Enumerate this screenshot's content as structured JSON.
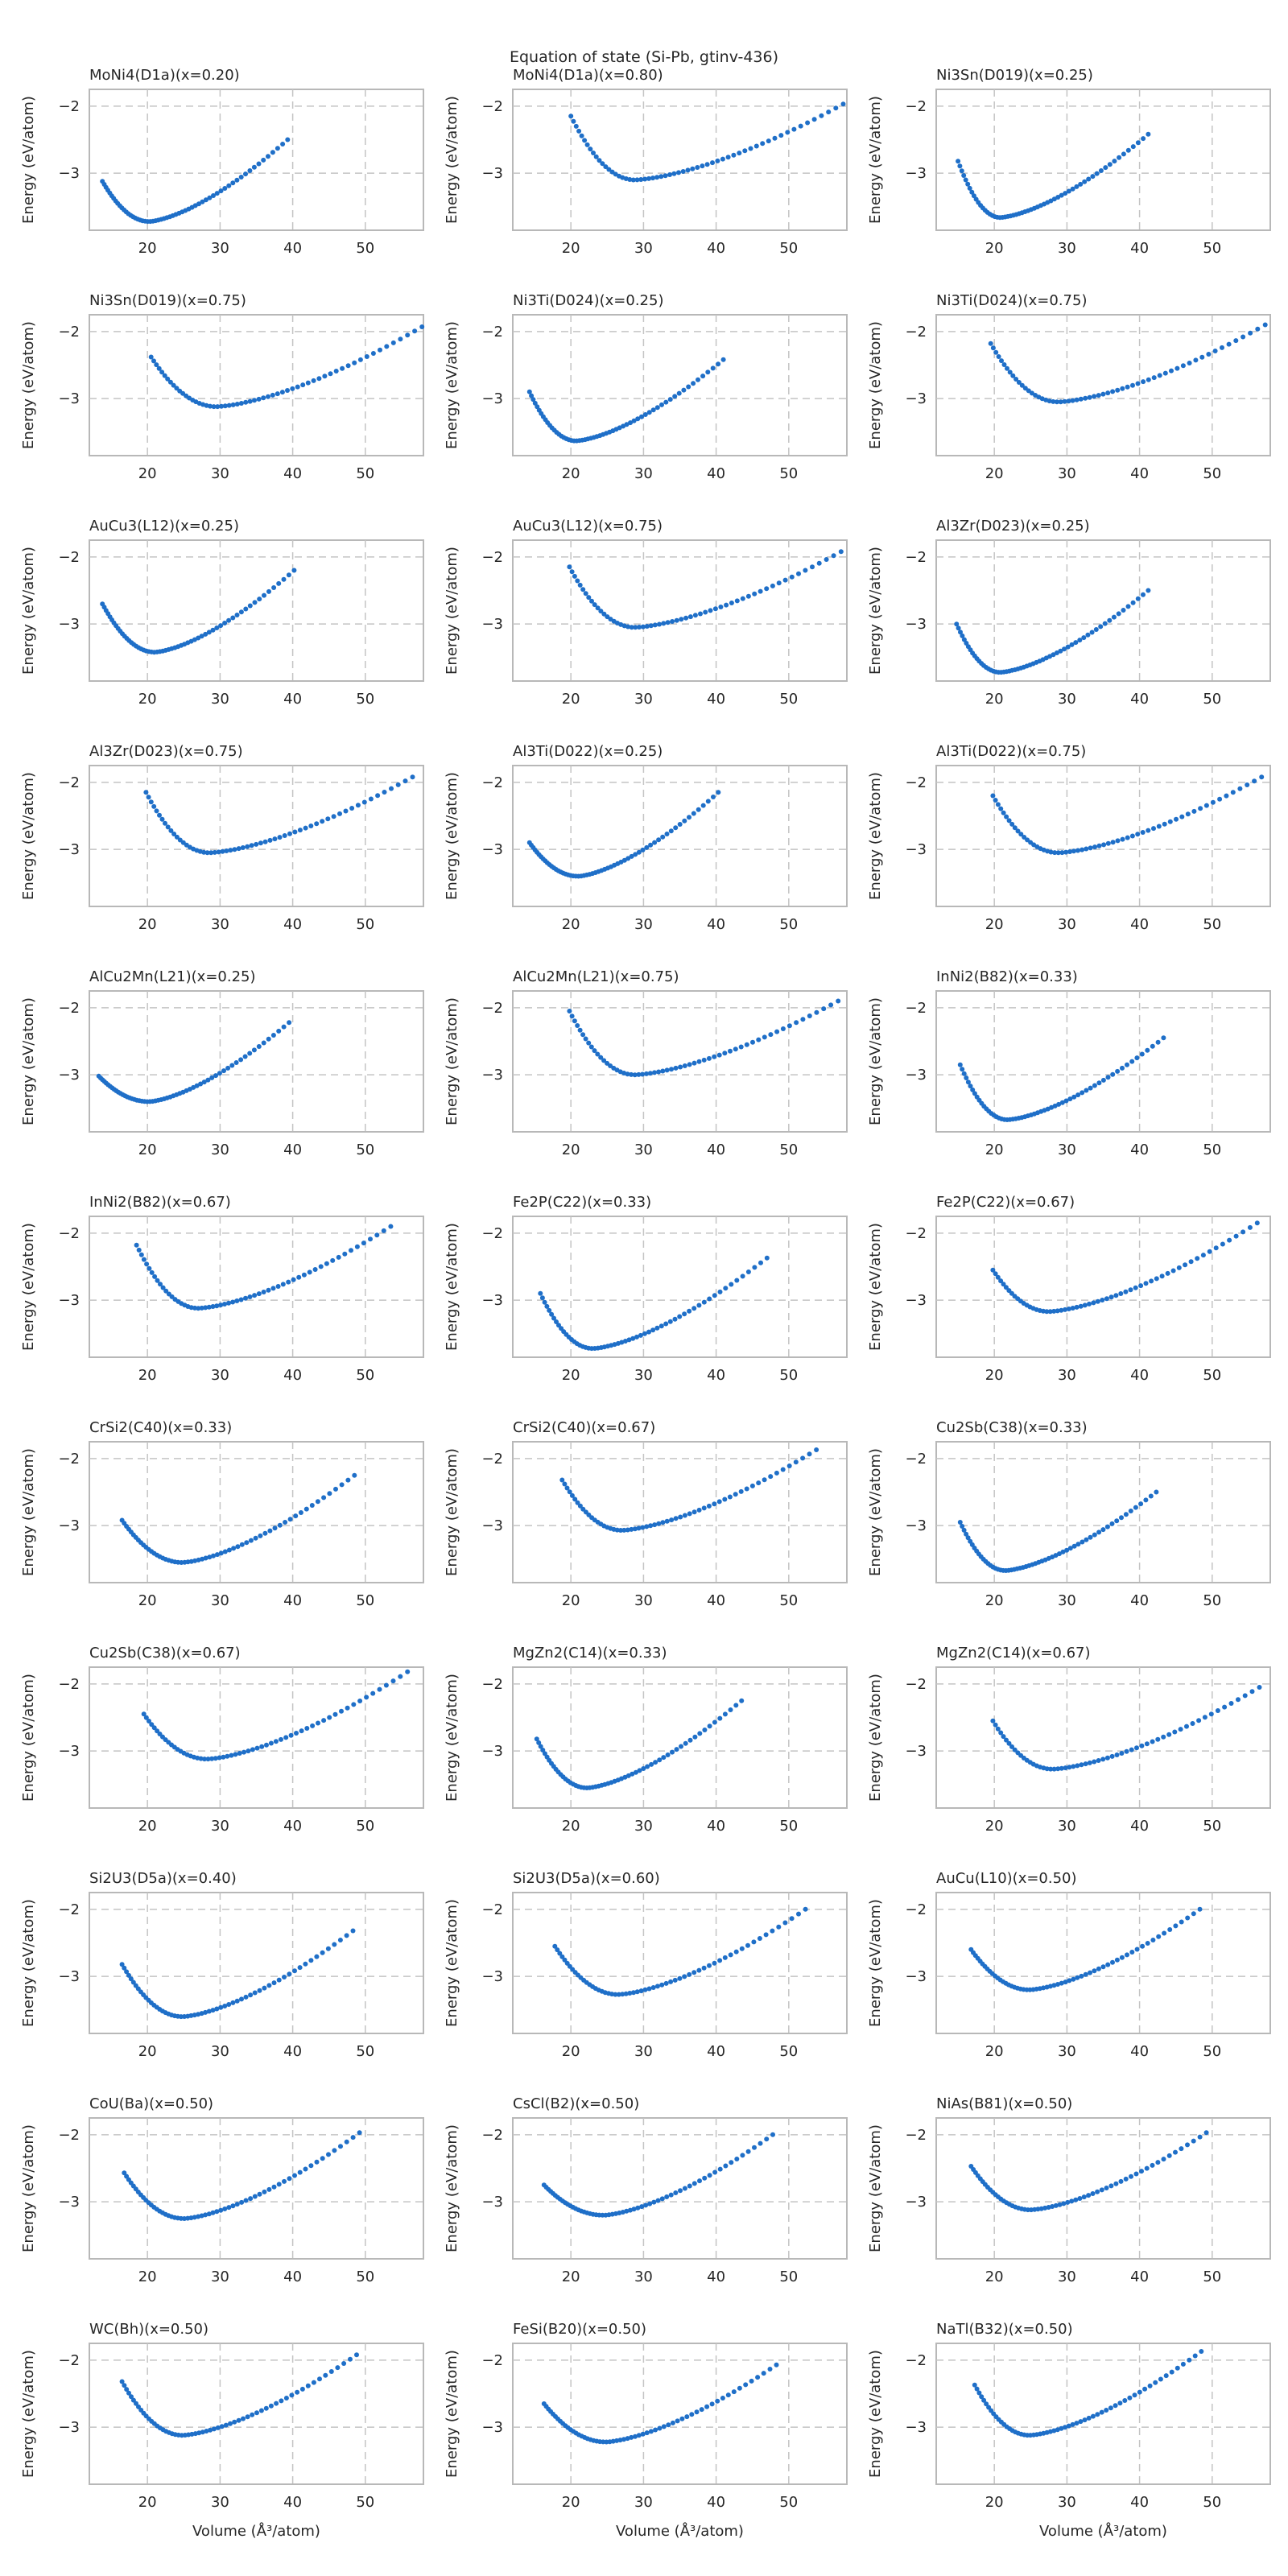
{
  "figure": {
    "title": "Equation of state (Si-Pb, gtinv-436)",
    "ylabel": "Energy (eV/atom)",
    "xlabel": "Volume (Å³/atom)",
    "point_color": "#1f6fc8"
  },
  "chart_data": [
    {
      "type": "scatter",
      "title": "MoNi4(D1a)(x=0.20)",
      "xlim": [
        12,
        58
      ],
      "ylim": [
        -3.85,
        -1.75
      ],
      "xticks": [
        20,
        30,
        40,
        50
      ],
      "yticks": [
        -2,
        -3
      ],
      "grid": true,
      "curve": {
        "vmin": 13.8,
        "vmax": 39.3,
        "v0": 20.2,
        "emin": -3.72,
        "eleft": -3.12,
        "eright": -2.5
      }
    },
    {
      "type": "scatter",
      "title": "MoNi4(D1a)(x=0.80)",
      "xlim": [
        12,
        58
      ],
      "ylim": [
        -3.85,
        -1.75
      ],
      "xticks": [
        20,
        30,
        40,
        50
      ],
      "yticks": [
        -2,
        -3
      ],
      "grid": true,
      "curve": {
        "vmin": 20.0,
        "vmax": 57.5,
        "v0": 28.8,
        "emin": -3.1,
        "eleft": -2.15,
        "eright": -1.97
      }
    },
    {
      "type": "scatter",
      "title": "Ni3Sn(D019)(x=0.25)",
      "xlim": [
        12,
        58
      ],
      "ylim": [
        -3.85,
        -1.75
      ],
      "xticks": [
        20,
        30,
        40,
        50
      ],
      "yticks": [
        -2,
        -3
      ],
      "grid": true,
      "curve": {
        "vmin": 15.0,
        "vmax": 41.2,
        "v0": 20.8,
        "emin": -3.66,
        "eleft": -2.82,
        "eright": -2.42
      }
    },
    {
      "type": "scatter",
      "title": "Ni3Sn(D019)(x=0.75)",
      "xlim": [
        12,
        58
      ],
      "ylim": [
        -3.85,
        -1.75
      ],
      "xticks": [
        20,
        30,
        40,
        50
      ],
      "yticks": [
        -2,
        -3
      ],
      "grid": true,
      "curve": {
        "vmin": 20.5,
        "vmax": 57.8,
        "v0": 29.5,
        "emin": -3.12,
        "eleft": -2.38,
        "eright": -1.93
      }
    },
    {
      "type": "scatter",
      "title": "Ni3Ti(D024)(x=0.25)",
      "xlim": [
        12,
        58
      ],
      "ylim": [
        -3.85,
        -1.75
      ],
      "xticks": [
        20,
        30,
        40,
        50
      ],
      "yticks": [
        -2,
        -3
      ],
      "grid": true,
      "curve": {
        "vmin": 14.3,
        "vmax": 41.0,
        "v0": 20.7,
        "emin": -3.63,
        "eleft": -2.9,
        "eright": -2.42
      }
    },
    {
      "type": "scatter",
      "title": "Ni3Ti(D024)(x=0.75)",
      "xlim": [
        12,
        58
      ],
      "ylim": [
        -3.85,
        -1.75
      ],
      "xticks": [
        20,
        30,
        40,
        50
      ],
      "yticks": [
        -2,
        -3
      ],
      "grid": true,
      "curve": {
        "vmin": 19.5,
        "vmax": 57.3,
        "v0": 28.8,
        "emin": -3.05,
        "eleft": -2.18,
        "eright": -1.9
      }
    },
    {
      "type": "scatter",
      "title": "AuCu3(L12)(x=0.25)",
      "xlim": [
        12,
        58
      ],
      "ylim": [
        -3.85,
        -1.75
      ],
      "xticks": [
        20,
        30,
        40,
        50
      ],
      "yticks": [
        -2,
        -3
      ],
      "grid": true,
      "curve": {
        "vmin": 13.8,
        "vmax": 40.2,
        "v0": 21.0,
        "emin": -3.42,
        "eleft": -2.7,
        "eright": -2.2
      }
    },
    {
      "type": "scatter",
      "title": "AuCu3(L12)(x=0.75)",
      "xlim": [
        12,
        58
      ],
      "ylim": [
        -3.85,
        -1.75
      ],
      "xticks": [
        20,
        30,
        40,
        50
      ],
      "yticks": [
        -2,
        -3
      ],
      "grid": true,
      "curve": {
        "vmin": 19.8,
        "vmax": 57.2,
        "v0": 28.8,
        "emin": -3.05,
        "eleft": -2.15,
        "eright": -1.92
      }
    },
    {
      "type": "scatter",
      "title": "Al3Zr(D023)(x=0.25)",
      "xlim": [
        12,
        58
      ],
      "ylim": [
        -3.85,
        -1.75
      ],
      "xticks": [
        20,
        30,
        40,
        50
      ],
      "yticks": [
        -2,
        -3
      ],
      "grid": true,
      "curve": {
        "vmin": 14.8,
        "vmax": 41.2,
        "v0": 20.8,
        "emin": -3.72,
        "eleft": -3.0,
        "eright": -2.5
      }
    },
    {
      "type": "scatter",
      "title": "Al3Zr(D023)(x=0.75)",
      "xlim": [
        12,
        58
      ],
      "ylim": [
        -3.85,
        -1.75
      ],
      "xticks": [
        20,
        30,
        40,
        50
      ],
      "yticks": [
        -2,
        -3
      ],
      "grid": true,
      "curve": {
        "vmin": 19.8,
        "vmax": 56.5,
        "v0": 28.5,
        "emin": -3.05,
        "eleft": -2.15,
        "eright": -1.92
      }
    },
    {
      "type": "scatter",
      "title": "Al3Ti(D022)(x=0.25)",
      "xlim": [
        12,
        58
      ],
      "ylim": [
        -3.85,
        -1.75
      ],
      "xticks": [
        20,
        30,
        40,
        50
      ],
      "yticks": [
        -2,
        -3
      ],
      "grid": true,
      "curve": {
        "vmin": 14.3,
        "vmax": 40.3,
        "v0": 21.0,
        "emin": -3.4,
        "eleft": -2.9,
        "eright": -2.15
      }
    },
    {
      "type": "scatter",
      "title": "Al3Ti(D022)(x=0.75)",
      "xlim": [
        12,
        58
      ],
      "ylim": [
        -3.85,
        -1.75
      ],
      "xticks": [
        20,
        30,
        40,
        50
      ],
      "yticks": [
        -2,
        -3
      ],
      "grid": true,
      "curve": {
        "vmin": 19.8,
        "vmax": 56.8,
        "v0": 28.8,
        "emin": -3.05,
        "eleft": -2.2,
        "eright": -1.92
      }
    },
    {
      "type": "scatter",
      "title": "AlCu2Mn(L21)(x=0.25)",
      "xlim": [
        12,
        58
      ],
      "ylim": [
        -3.85,
        -1.75
      ],
      "xticks": [
        20,
        30,
        40,
        50
      ],
      "yticks": [
        -2,
        -3
      ],
      "grid": true,
      "curve": {
        "vmin": 13.3,
        "vmax": 39.5,
        "v0": 20.2,
        "emin": -3.4,
        "eleft": -3.02,
        "eright": -2.22
      }
    },
    {
      "type": "scatter",
      "title": "AlCu2Mn(L21)(x=0.75)",
      "xlim": [
        12,
        58
      ],
      "ylim": [
        -3.85,
        -1.75
      ],
      "xticks": [
        20,
        30,
        40,
        50
      ],
      "yticks": [
        -2,
        -3
      ],
      "grid": true,
      "curve": {
        "vmin": 19.8,
        "vmax": 56.8,
        "v0": 28.8,
        "emin": -3.0,
        "eleft": -2.05,
        "eright": -1.9
      }
    },
    {
      "type": "scatter",
      "title": "InNi2(B82)(x=0.33)",
      "xlim": [
        12,
        58
      ],
      "ylim": [
        -3.85,
        -1.75
      ],
      "xticks": [
        20,
        30,
        40,
        50
      ],
      "yticks": [
        -2,
        -3
      ],
      "grid": true,
      "curve": {
        "vmin": 15.3,
        "vmax": 43.3,
        "v0": 21.8,
        "emin": -3.67,
        "eleft": -2.85,
        "eright": -2.45
      }
    },
    {
      "type": "scatter",
      "title": "InNi2(B82)(x=0.67)",
      "xlim": [
        12,
        58
      ],
      "ylim": [
        -3.85,
        -1.75
      ],
      "xticks": [
        20,
        30,
        40,
        50
      ],
      "yticks": [
        -2,
        -3
      ],
      "grid": true,
      "curve": {
        "vmin": 18.5,
        "vmax": 53.5,
        "v0": 27.0,
        "emin": -3.12,
        "eleft": -2.18,
        "eright": -1.9
      }
    },
    {
      "type": "scatter",
      "title": "Fe2P(C22)(x=0.33)",
      "xlim": [
        12,
        58
      ],
      "ylim": [
        -3.85,
        -1.75
      ],
      "xticks": [
        20,
        30,
        40,
        50
      ],
      "yticks": [
        -2,
        -3
      ],
      "grid": true,
      "curve": {
        "vmin": 15.8,
        "vmax": 47.0,
        "v0": 23.0,
        "emin": -3.72,
        "eleft": -2.9,
        "eright": -2.37
      }
    },
    {
      "type": "scatter",
      "title": "Fe2P(C22)(x=0.67)",
      "xlim": [
        12,
        58
      ],
      "ylim": [
        -3.85,
        -1.75
      ],
      "xticks": [
        20,
        30,
        40,
        50
      ],
      "yticks": [
        -2,
        -3
      ],
      "grid": true,
      "curve": {
        "vmin": 19.8,
        "vmax": 56.2,
        "v0": 27.5,
        "emin": -3.17,
        "eleft": -2.55,
        "eright": -1.85
      }
    },
    {
      "type": "scatter",
      "title": "CrSi2(C40)(x=0.33)",
      "xlim": [
        12,
        58
      ],
      "ylim": [
        -3.85,
        -1.75
      ],
      "xticks": [
        20,
        30,
        40,
        50
      ],
      "yticks": [
        -2,
        -3
      ],
      "grid": true,
      "curve": {
        "vmin": 16.5,
        "vmax": 48.5,
        "v0": 24.8,
        "emin": -3.55,
        "eleft": -2.92,
        "eright": -2.25
      }
    },
    {
      "type": "scatter",
      "title": "CrSi2(C40)(x=0.67)",
      "xlim": [
        12,
        58
      ],
      "ylim": [
        -3.85,
        -1.75
      ],
      "xticks": [
        20,
        30,
        40,
        50
      ],
      "yticks": [
        -2,
        -3
      ],
      "grid": true,
      "curve": {
        "vmin": 18.8,
        "vmax": 53.8,
        "v0": 27.0,
        "emin": -3.07,
        "eleft": -2.32,
        "eright": -1.87
      }
    },
    {
      "type": "scatter",
      "title": "Cu2Sb(C38)(x=0.33)",
      "xlim": [
        12,
        58
      ],
      "ylim": [
        -3.85,
        -1.75
      ],
      "xticks": [
        20,
        30,
        40,
        50
      ],
      "yticks": [
        -2,
        -3
      ],
      "grid": true,
      "curve": {
        "vmin": 15.3,
        "vmax": 42.3,
        "v0": 21.5,
        "emin": -3.67,
        "eleft": -2.95,
        "eright": -2.5
      }
    },
    {
      "type": "scatter",
      "title": "Cu2Sb(C38)(x=0.67)",
      "xlim": [
        12,
        58
      ],
      "ylim": [
        -3.85,
        -1.75
      ],
      "xticks": [
        20,
        30,
        40,
        50
      ],
      "yticks": [
        -2,
        -3
      ],
      "grid": true,
      "curve": {
        "vmin": 19.5,
        "vmax": 55.8,
        "v0": 28.2,
        "emin": -3.12,
        "eleft": -2.45,
        "eright": -1.82
      }
    },
    {
      "type": "scatter",
      "title": "MgZn2(C14)(x=0.33)",
      "xlim": [
        12,
        58
      ],
      "ylim": [
        -3.85,
        -1.75
      ],
      "xticks": [
        20,
        30,
        40,
        50
      ],
      "yticks": [
        -2,
        -3
      ],
      "grid": true,
      "curve": {
        "vmin": 15.3,
        "vmax": 43.5,
        "v0": 22.2,
        "emin": -3.55,
        "eleft": -2.82,
        "eright": -2.25
      }
    },
    {
      "type": "scatter",
      "title": "MgZn2(C14)(x=0.67)",
      "xlim": [
        12,
        58
      ],
      "ylim": [
        -3.85,
        -1.75
      ],
      "xticks": [
        20,
        30,
        40,
        50
      ],
      "yticks": [
        -2,
        -3
      ],
      "grid": true,
      "curve": {
        "vmin": 19.8,
        "vmax": 56.5,
        "v0": 28.0,
        "emin": -3.27,
        "eleft": -2.55,
        "eright": -2.05
      }
    },
    {
      "type": "scatter",
      "title": "Si2U3(D5a)(x=0.40)",
      "xlim": [
        12,
        58
      ],
      "ylim": [
        -3.85,
        -1.75
      ],
      "xticks": [
        20,
        30,
        40,
        50
      ],
      "yticks": [
        -2,
        -3
      ],
      "grid": true,
      "curve": {
        "vmin": 16.5,
        "vmax": 48.3,
        "v0": 24.8,
        "emin": -3.6,
        "eleft": -2.82,
        "eright": -2.32
      }
    },
    {
      "type": "scatter",
      "title": "Si2U3(D5a)(x=0.60)",
      "xlim": [
        12,
        58
      ],
      "ylim": [
        -3.85,
        -1.75
      ],
      "xticks": [
        20,
        30,
        40,
        50
      ],
      "yticks": [
        -2,
        -3
      ],
      "grid": true,
      "curve": {
        "vmin": 17.8,
        "vmax": 52.3,
        "v0": 26.5,
        "emin": -3.27,
        "eleft": -2.55,
        "eright": -2.0
      }
    },
    {
      "type": "scatter",
      "title": "AuCu(L10)(x=0.50)",
      "xlim": [
        12,
        58
      ],
      "ylim": [
        -3.85,
        -1.75
      ],
      "xticks": [
        20,
        30,
        40,
        50
      ],
      "yticks": [
        -2,
        -3
      ],
      "grid": true,
      "curve": {
        "vmin": 16.8,
        "vmax": 48.3,
        "v0": 24.8,
        "emin": -3.2,
        "eleft": -2.6,
        "eright": -2.0
      }
    },
    {
      "type": "scatter",
      "title": "CoU(Ba)(x=0.50)",
      "xlim": [
        12,
        58
      ],
      "ylim": [
        -3.85,
        -1.75
      ],
      "xticks": [
        20,
        30,
        40,
        50
      ],
      "yticks": [
        -2,
        -3
      ],
      "grid": true,
      "curve": {
        "vmin": 16.8,
        "vmax": 49.2,
        "v0": 25.0,
        "emin": -3.25,
        "eleft": -2.57,
        "eright": -1.97
      }
    },
    {
      "type": "scatter",
      "title": "CsCl(B2)(x=0.50)",
      "xlim": [
        12,
        58
      ],
      "ylim": [
        -3.85,
        -1.75
      ],
      "xticks": [
        20,
        30,
        40,
        50
      ],
      "yticks": [
        -2,
        -3
      ],
      "grid": true,
      "curve": {
        "vmin": 16.3,
        "vmax": 47.8,
        "v0": 24.5,
        "emin": -3.2,
        "eleft": -2.75,
        "eright": -2.0
      }
    },
    {
      "type": "scatter",
      "title": "NiAs(B81)(x=0.50)",
      "xlim": [
        12,
        58
      ],
      "ylim": [
        -3.85,
        -1.75
      ],
      "xticks": [
        20,
        30,
        40,
        50
      ],
      "yticks": [
        -2,
        -3
      ],
      "grid": true,
      "curve": {
        "vmin": 16.8,
        "vmax": 49.2,
        "v0": 25.0,
        "emin": -3.12,
        "eleft": -2.47,
        "eright": -1.97
      }
    },
    {
      "type": "scatter",
      "title": "WC(Bh)(x=0.50)",
      "xlim": [
        12,
        58
      ],
      "ylim": [
        -3.85,
        -1.75
      ],
      "xticks": [
        20,
        30,
        40,
        50
      ],
      "yticks": [
        -2,
        -3
      ],
      "grid": true,
      "curve": {
        "vmin": 16.5,
        "vmax": 48.8,
        "v0": 24.8,
        "emin": -3.12,
        "eleft": -2.32,
        "eright": -1.92
      }
    },
    {
      "type": "scatter",
      "title": "FeSi(B20)(x=0.50)",
      "xlim": [
        12,
        58
      ],
      "ylim": [
        -3.85,
        -1.75
      ],
      "xticks": [
        20,
        30,
        40,
        50
      ],
      "yticks": [
        -2,
        -3
      ],
      "grid": true,
      "curve": {
        "vmin": 16.3,
        "vmax": 48.3,
        "v0": 24.8,
        "emin": -3.22,
        "eleft": -2.65,
        "eright": -2.07
      }
    },
    {
      "type": "scatter",
      "title": "NaTl(B32)(x=0.50)",
      "xlim": [
        12,
        58
      ],
      "ylim": [
        -3.85,
        -1.75
      ],
      "xticks": [
        20,
        30,
        40,
        50
      ],
      "yticks": [
        -2,
        -3
      ],
      "grid": true,
      "curve": {
        "vmin": 17.3,
        "vmax": 48.5,
        "v0": 24.8,
        "emin": -3.12,
        "eleft": -2.37,
        "eright": -1.87
      }
    }
  ]
}
